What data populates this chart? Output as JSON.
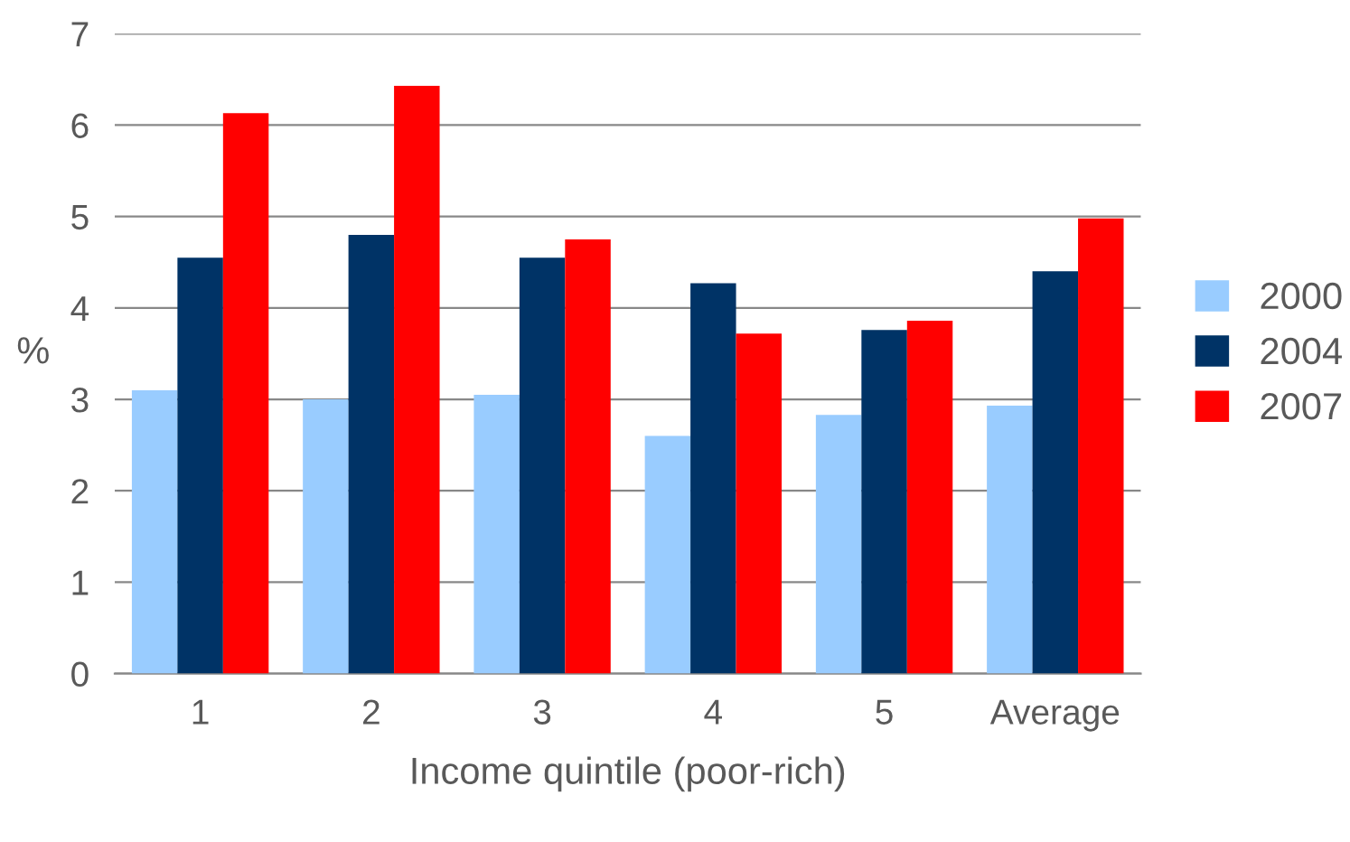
{
  "chart_data": {
    "type": "bar",
    "xlabel": "Income quintile (poor-rich)",
    "ylabel": "%",
    "categories": [
      "1",
      "2",
      "3",
      "4",
      "5",
      "Average"
    ],
    "series": [
      {
        "name": "2000",
        "color": "#99ccff",
        "values": [
          3.1,
          3.0,
          3.05,
          2.6,
          2.83,
          2.93
        ]
      },
      {
        "name": "2004",
        "color": "#003366",
        "values": [
          4.55,
          4.8,
          4.55,
          4.27,
          3.76,
          4.4
        ]
      },
      {
        "name": "2007",
        "color": "#ff0000",
        "values": [
          6.13,
          6.43,
          4.75,
          3.72,
          3.86,
          4.98
        ]
      }
    ],
    "ylim": [
      0,
      7
    ],
    "yticks": [
      0,
      1,
      2,
      3,
      4,
      5,
      6,
      7
    ],
    "grid": "y",
    "legend": "right"
  }
}
